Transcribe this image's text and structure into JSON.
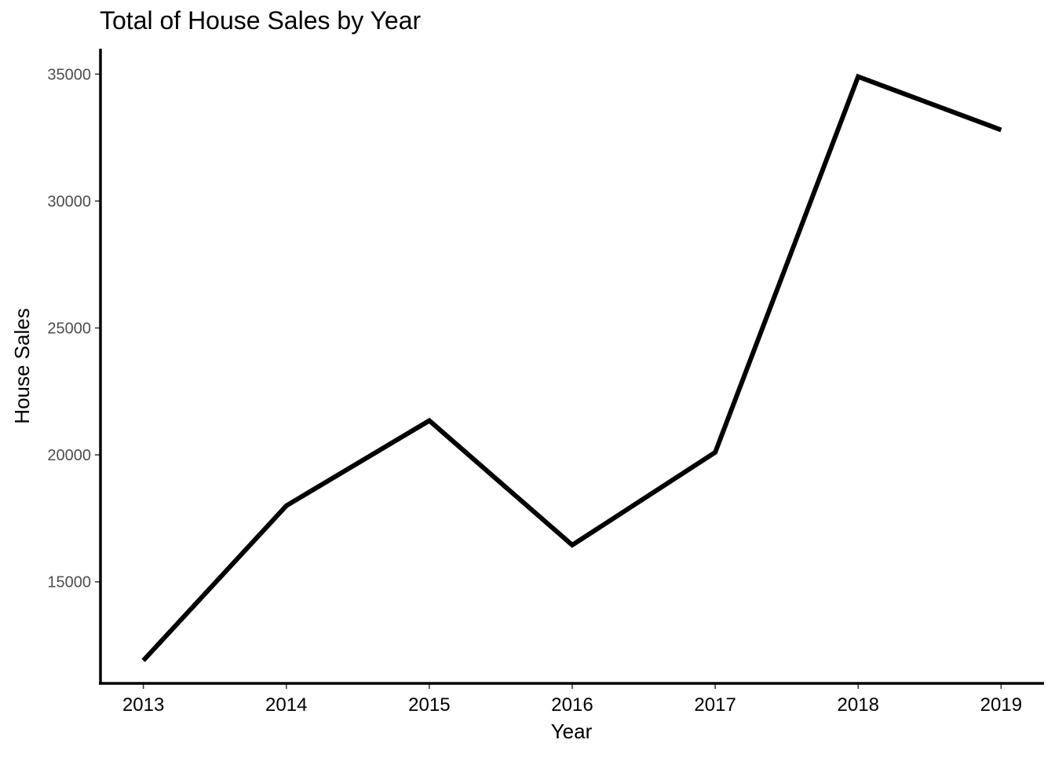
{
  "chart_data": {
    "type": "line",
    "title": "Total of House Sales by Year",
    "xlabel": "Year",
    "ylabel": "House Sales",
    "x": [
      2013,
      2014,
      2015,
      2016,
      2017,
      2018,
      2019
    ],
    "series": [
      {
        "values": [
          11900,
          18000,
          21350,
          16450,
          20100,
          34900,
          32800
        ]
      }
    ],
    "yticks": [
      15000,
      20000,
      25000,
      30000,
      35000
    ],
    "ytick_labels": [
      "15000",
      "20000",
      "25000",
      "30000",
      "35000"
    ],
    "xtick_labels": [
      "2013",
      "2014",
      "2015",
      "2016",
      "2017",
      "2018",
      "2019"
    ],
    "ylim": [
      11000,
      36000
    ],
    "xlim": [
      2012.7,
      2019.3
    ],
    "grid": false,
    "legend": "none",
    "line_color": "#000000"
  }
}
